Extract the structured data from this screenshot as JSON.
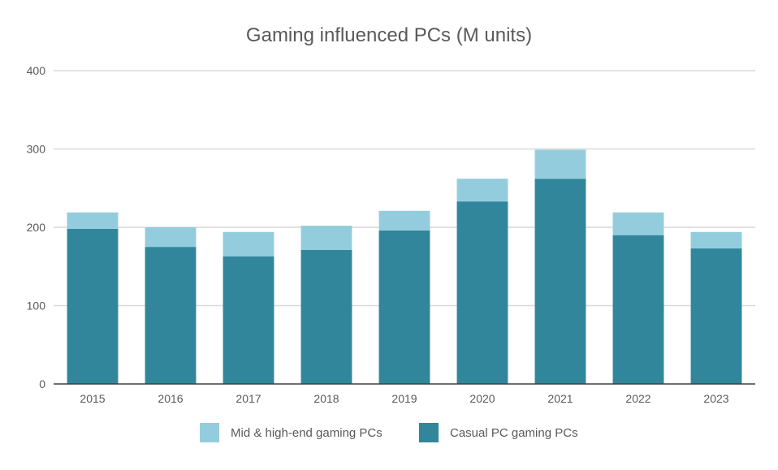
{
  "chart_data": {
    "type": "bar",
    "stacked": true,
    "title": "Gaming influenced PCs (M units)",
    "xlabel": "",
    "ylabel": "",
    "ylim": [
      0,
      400
    ],
    "yticks": [
      "0",
      "100",
      "200",
      "300",
      "400"
    ],
    "ytick_values": [
      0,
      100,
      200,
      300,
      400
    ],
    "grid": true,
    "legend_position": "bottom",
    "categories": [
      "2015",
      "2016",
      "2017",
      "2018",
      "2019",
      "2020",
      "2021",
      "2022",
      "2023"
    ],
    "series": [
      {
        "name": "Casual PC gaming PCs",
        "color": "#31869b",
        "values": [
          198,
          175,
          163,
          171,
          196,
          233,
          262,
          190,
          173
        ]
      },
      {
        "name": "Mid & high-end gaming PCs",
        "color": "#93cddd",
        "values": [
          21,
          25,
          31,
          31,
          25,
          29,
          37,
          29,
          21
        ]
      }
    ],
    "legend_order": [
      1,
      0
    ]
  }
}
